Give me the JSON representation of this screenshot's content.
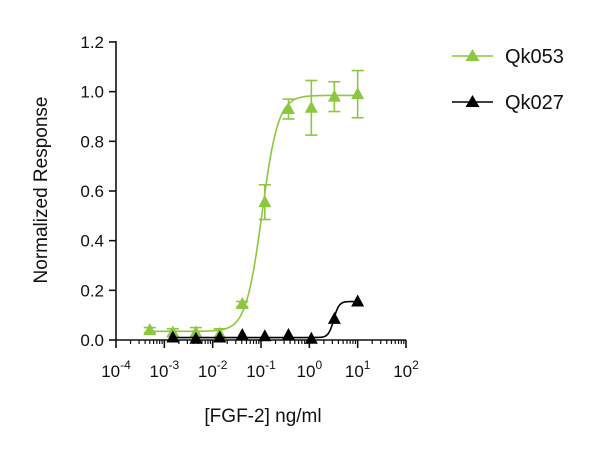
{
  "chart_data": {
    "type": "scatter",
    "title": "",
    "xlabel": "[FGF-2] ng/ml",
    "ylabel": "Normalized Response",
    "x_scale": "log10",
    "xlim": [
      0.0001,
      100
    ],
    "ylim": [
      0,
      1.2
    ],
    "x_tick_exponents": [
      "-4",
      "-3",
      "-2",
      "-1",
      "0",
      "1",
      "2"
    ],
    "y_ticks": [
      "0.0",
      "0.2",
      "0.4",
      "0.6",
      "0.8",
      "1.0",
      "1.2"
    ],
    "grid": false,
    "legend_position": "top-right",
    "series": [
      {
        "name": "Qk053",
        "color": "#8DC63F",
        "marker": "triangle",
        "x": [
          0.0005,
          0.0015,
          0.0045,
          0.014,
          0.041,
          0.12,
          0.37,
          1.1,
          3.3,
          10
        ],
        "y": [
          0.04,
          0.03,
          0.03,
          0.025,
          0.145,
          0.555,
          0.93,
          0.935,
          0.98,
          0.99
        ],
        "error": [
          0.01,
          0.015,
          0.02,
          0.02,
          0.01,
          0.07,
          0.04,
          0.11,
          0.06,
          0.095
        ],
        "fit": {
          "bottom": 0.035,
          "top": 0.985,
          "ec50": 0.105,
          "hill": 2.6
        }
      },
      {
        "name": "Qk027",
        "color": "#000000",
        "marker": "triangle",
        "x": [
          0.0015,
          0.0045,
          0.014,
          0.041,
          0.12,
          0.37,
          1.1,
          3.3,
          10
        ],
        "y": [
          0.01,
          0.005,
          0.01,
          0.02,
          0.015,
          0.02,
          0.005,
          0.085,
          0.155
        ],
        "fit": {
          "bottom": 0.01,
          "top": 0.155,
          "ec50": 3.2,
          "hill": 8
        }
      }
    ]
  }
}
